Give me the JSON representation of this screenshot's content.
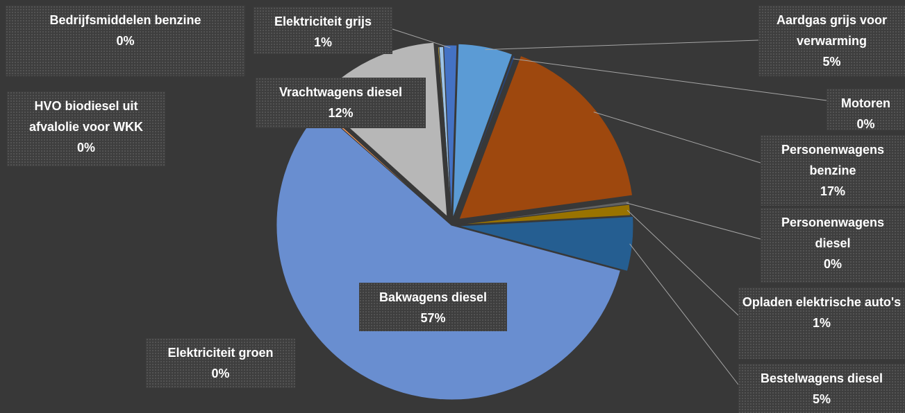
{
  "chart_data": {
    "type": "pie",
    "categories": [
      "Bedrijfsmiddelen benzine",
      "Elektriciteit grijs",
      "Aardgas grijs voor verwarming",
      "Motoren",
      "Personenwagens benzine",
      "Personenwagens diesel",
      "Opladen elektrische auto's",
      "Bestelwagens diesel",
      "Bakwagens diesel",
      "Elektriciteit groen",
      "Vrachtwagens diesel",
      "HVO biodiesel uit afvalolie voor WKK"
    ],
    "values": [
      0.4,
      1.2,
      5.0,
      0.2,
      17.0,
      0.3,
      1.0,
      5.0,
      57.0,
      0.2,
      12.0,
      0.1
    ],
    "value_labels": [
      "0%",
      "1%",
      "5%",
      "0%",
      "17%",
      "0%",
      "1%",
      "5%",
      "57%",
      "0%",
      "12%",
      "0%"
    ],
    "colors": [
      "#9dc3e6",
      "#4472c4",
      "#5b9bd5",
      "#264478",
      "#9e480e",
      "#636363",
      "#997300",
      "#255e91",
      "#698ed0",
      "#f1975a",
      "#b7b7b7",
      "#ffcd33"
    ]
  }
}
